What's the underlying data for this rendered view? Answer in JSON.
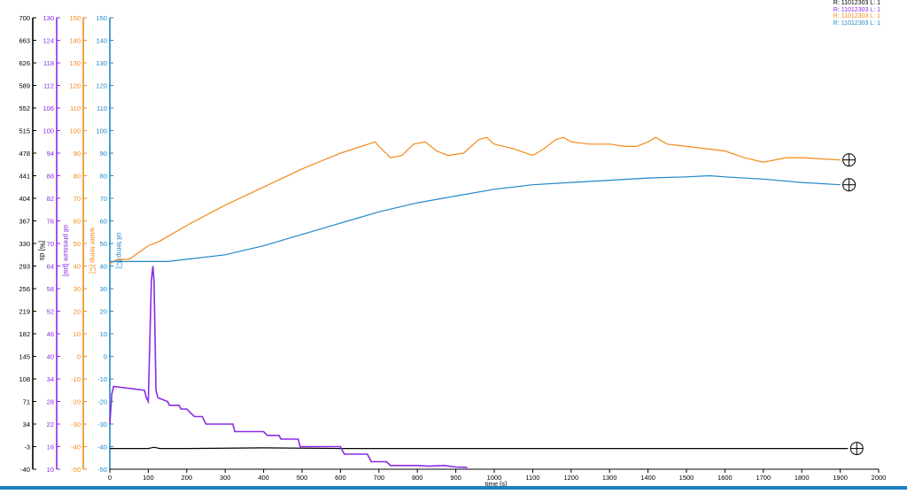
{
  "chart_data": {
    "type": "line",
    "x_axis": {
      "label": "time [s]",
      "ticks": [
        "0",
        "100",
        "200",
        "300",
        "400",
        "500",
        "600",
        "700",
        "800",
        "900",
        "1000",
        "1100",
        "1200",
        "1300",
        "1400",
        "1500",
        "1600",
        "1700",
        "1800",
        "1900",
        "2000"
      ],
      "range": [
        0,
        2000
      ]
    },
    "y_axes": [
      {
        "key": "speed",
        "label": "[%] ds",
        "color": "#000000",
        "range": [
          -40,
          700
        ],
        "ticks": [
          "700",
          "663",
          "626",
          "589",
          "552",
          "515",
          "478",
          "441",
          "404",
          "367",
          "330",
          "293",
          "256",
          "219",
          "182",
          "145",
          "108",
          "71",
          "34",
          "-3",
          "-40"
        ]
      },
      {
        "key": "oil_pressure",
        "label": "oil pressure [psi]",
        "color": "#8a2be2",
        "range": [
          10,
          130
        ],
        "ticks": [
          "130",
          "124",
          "118",
          "112",
          "106",
          "100",
          "94",
          "88",
          "82",
          "76",
          "70",
          "64",
          "58",
          "52",
          "46",
          "40",
          "34",
          "28",
          "22",
          "16",
          "10"
        ]
      },
      {
        "key": "water_temp",
        "label": "water temp [C]",
        "color": "#f28a1a",
        "range": [
          -50,
          150
        ],
        "ticks": [
          "150",
          "140",
          "130",
          "120",
          "110",
          "100",
          "90",
          "80",
          "70",
          "60",
          "50",
          "40",
          "30",
          "20",
          "10",
          "0",
          "-10",
          "-20",
          "-30",
          "-40",
          "-50"
        ]
      },
      {
        "key": "oil_temp",
        "label": "oil temp [C]",
        "color": "#1f88c9",
        "range": [
          -50,
          150
        ],
        "ticks": [
          "150",
          "140",
          "130",
          "120",
          "110",
          "100",
          "90",
          "80",
          "70",
          "60",
          "50",
          "40",
          "30",
          "20",
          "10",
          "0",
          "-10",
          "-20",
          "-30",
          "-40",
          "-50"
        ]
      }
    ],
    "series": [
      {
        "name": "R: 11012303  L: 1",
        "axis": "speed",
        "color": "#000000",
        "x": [
          0,
          100,
          115,
          130,
          200,
          400,
          600,
          800,
          1000,
          1200,
          1400,
          1600,
          1800,
          1920
        ],
        "y": [
          -6,
          -6,
          -4,
          -6,
          -6,
          -5,
          -6,
          -6,
          -6,
          -6,
          -6,
          -6,
          -6,
          -6
        ]
      },
      {
        "name": "R: 11012303  L: 1",
        "axis": "oil_pressure",
        "color": "#8a2be2",
        "x": [
          0,
          5,
          10,
          90,
          95,
          100,
          108,
          112,
          115,
          120,
          125,
          150,
          155,
          180,
          185,
          200,
          210,
          220,
          240,
          250,
          320,
          325,
          400,
          410,
          440,
          445,
          490,
          495,
          600,
          610,
          670,
          680,
          720,
          730,
          800,
          830,
          870,
          900,
          930
        ],
        "y": [
          22,
          30,
          32,
          31,
          29,
          28,
          60,
          64,
          60,
          31,
          29,
          28,
          27,
          27,
          26,
          26,
          25,
          24,
          24,
          22,
          22,
          20,
          20,
          19,
          19,
          18,
          18,
          16,
          16,
          14,
          14,
          12,
          12,
          11,
          11,
          10.8,
          11,
          10.6,
          10.5
        ]
      },
      {
        "name": "R: 11012303  L: 1",
        "axis": "water_temp",
        "color": "#f28a1a",
        "x": [
          0,
          20,
          50,
          100,
          130,
          150,
          200,
          300,
          400,
          500,
          600,
          690,
          700,
          730,
          760,
          790,
          820,
          850,
          880,
          920,
          960,
          980,
          1000,
          1050,
          1100,
          1130,
          1160,
          1180,
          1200,
          1250,
          1300,
          1340,
          1370,
          1400,
          1420,
          1450,
          1500,
          1550,
          1600,
          1650,
          1700,
          1730,
          1760,
          1800,
          1900
        ],
        "y": [
          41,
          43,
          43,
          49,
          51,
          53,
          58,
          67,
          75,
          83,
          90,
          95,
          93,
          88,
          89,
          94,
          95,
          91,
          89,
          90,
          96,
          97,
          94,
          92,
          89,
          92,
          96,
          97,
          95,
          94,
          94,
          93,
          93,
          95,
          97,
          94,
          93,
          92,
          91,
          88,
          86,
          87,
          88,
          88,
          87
        ]
      },
      {
        "name": "R: 11012303  L: 1",
        "axis": "oil_temp",
        "color": "#1f88c9",
        "x": [
          0,
          100,
          150,
          200,
          300,
          400,
          500,
          600,
          700,
          800,
          900,
          1000,
          1100,
          1200,
          1300,
          1400,
          1500,
          1560,
          1600,
          1700,
          1800,
          1900
        ],
        "y": [
          42,
          42,
          42,
          43,
          45,
          49,
          54,
          59,
          64,
          68,
          71,
          74,
          76,
          77,
          78,
          79,
          79.5,
          80,
          79.5,
          78.5,
          77,
          76
        ]
      }
    ],
    "grid": false,
    "legend_position": "top-right"
  }
}
